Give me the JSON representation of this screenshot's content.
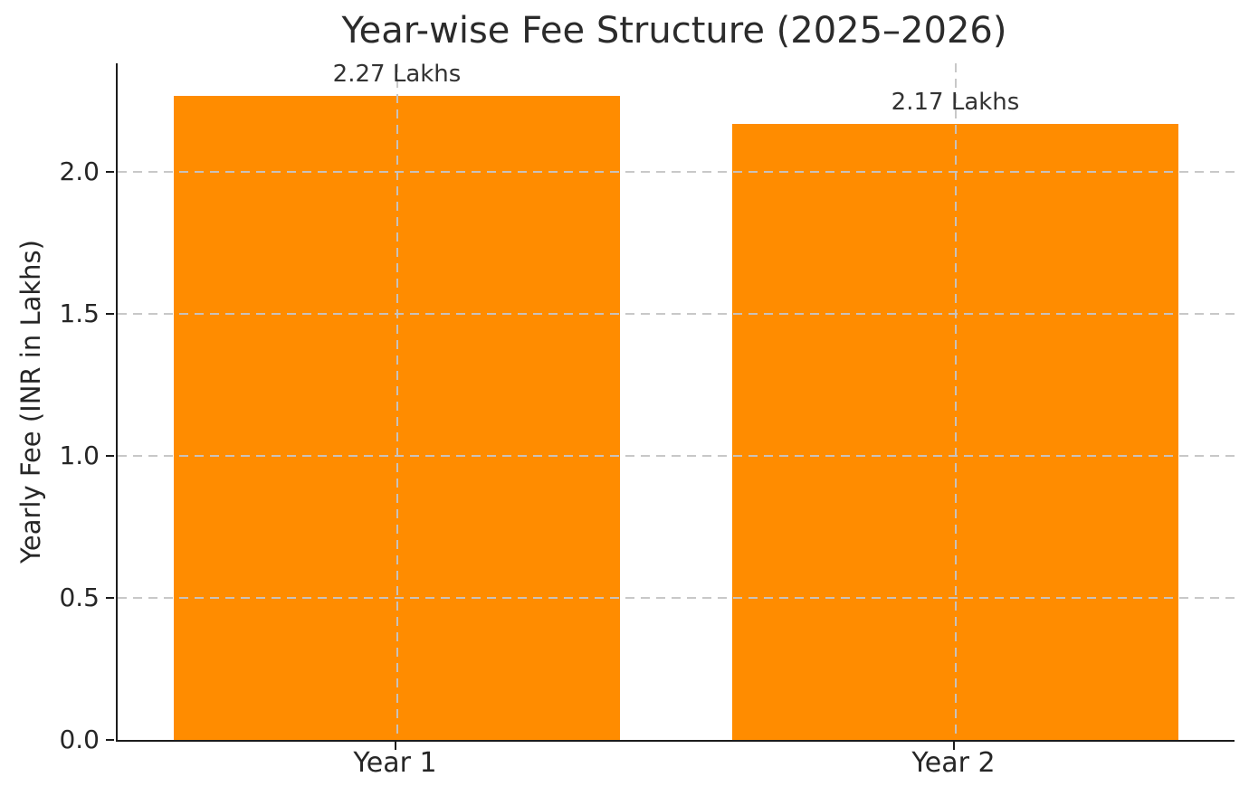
{
  "chart_data": {
    "type": "bar",
    "title": "Year-wise Fee Structure (2025–2026)",
    "ylabel": "Yearly Fee (INR in Lakhs)",
    "xlabel": "",
    "categories": [
      "Year 1",
      "Year 2"
    ],
    "values": [
      2.27,
      2.17
    ],
    "bar_labels": [
      "2.27 Lakhs",
      "2.17 Lakhs"
    ],
    "ytick_values": [
      0.0,
      0.5,
      1.0,
      1.5,
      2.0
    ],
    "ytick_labels": [
      "0.0",
      "0.5",
      "1.0",
      "1.5",
      "2.0"
    ],
    "ylim": [
      0,
      2.3835
    ],
    "bar_width_fraction": 0.8,
    "grid": "dashed, both axes, drawn above bars",
    "legend": "none",
    "colors": {
      "bar": "#FF8C00",
      "grid": "#c5c5c5",
      "axis": "#1c1c1c",
      "text": "#262626",
      "background": "#ffffff"
    }
  }
}
